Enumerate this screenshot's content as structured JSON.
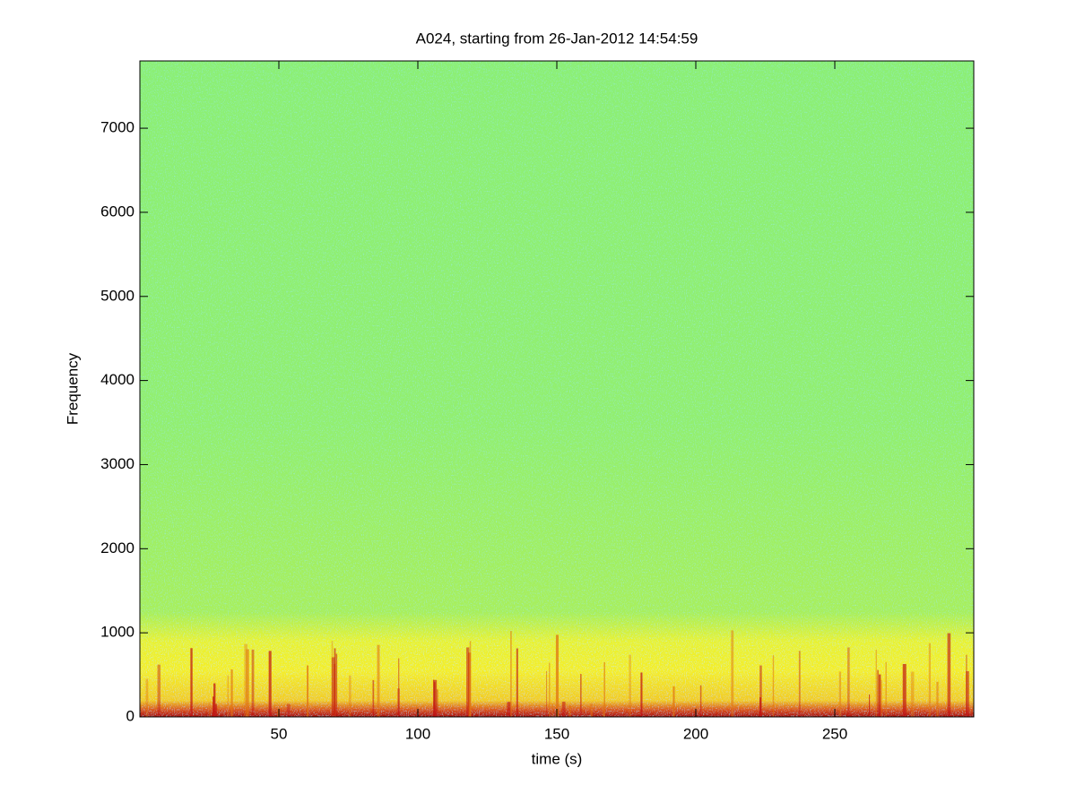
{
  "chart_data": {
    "type": "spectrogram",
    "title": "A024, starting from 26-Jan-2012 14:54:59",
    "x_label": "time (s)",
    "y_label": "Frequency",
    "xlim": [
      0,
      300
    ],
    "ylim": [
      0,
      7800
    ],
    "xticks": [
      50,
      100,
      150,
      200,
      250
    ],
    "yticks": [
      0,
      1000,
      2000,
      3000,
      4000,
      5000,
      6000,
      7000
    ]
  }
}
